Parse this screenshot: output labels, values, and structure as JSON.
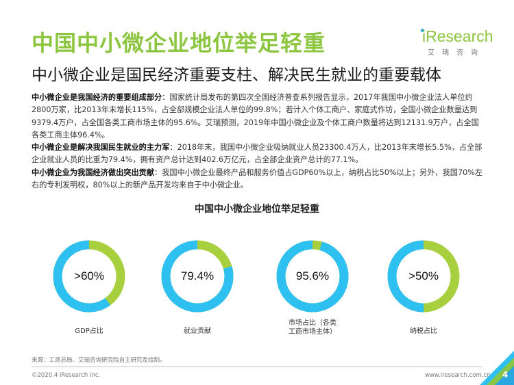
{
  "header": {
    "title": "中国中小微企业地位举足轻重",
    "subtitle": "中小微企业是国民经济重要支柱、解决民生就业的重要载体"
  },
  "logo": {
    "word": "iResearch",
    "cn": "艾瑞咨询"
  },
  "paragraphs": [
    {
      "bold": "中小微企业是我国经济的重要组成部分",
      "text": "：国家统计局发布的第四次全国经济普查系列报告显示，2017年我国中小微企业法人单位约2800万家，比2013年末增长115%，占全部规模企业法人单位的99.8%；若计入个体工商户、家庭式作坊，全国小微企业数量达到9379.4万户，占全国各类工商市场主体的95.6%。艾瑞预测，2019年中国小微企业及个体工商户数量将达到12131.9万户，占全国各类工商主体96.4%。"
    },
    {
      "bold": "中小微企业是解决我国民生就业的主力军",
      "text": "：2018年末，我国中小微企业吸纳就业人员23300.4万人，比2013年末增长5.5%，占全部企业就业人员的比重为79.4%，拥有资产总计达到402.6万亿元，占全部企业资产总计的77.1%。"
    },
    {
      "bold": "中小微企业为我国经济做出突出贡献",
      "text": "：我国中小微企业最终产品和服务价值占GDP60%以上，纳税占比50%以上；另外，我国70%左右的专利发明权，80%以上的新产品开发均来自于中小微企业。"
    }
  ],
  "chart_data": {
    "type": "pie",
    "title": "中国中小微企业地位举足轻重",
    "colors": {
      "share": "#2ec0f0",
      "rest": "#a7cf3e"
    },
    "items": [
      {
        "label": "GDP占比",
        "value_text": ">60%",
        "value": 60
      },
      {
        "label": "就业贡献",
        "value_text": "79.4%",
        "value": 79.4
      },
      {
        "label": "市场占比（各类工商市场主体）",
        "value_text": "95.6%",
        "value": 95.6
      },
      {
        "label": "纳税占比",
        "value_text": ">50%",
        "value": 50
      }
    ]
  },
  "footer": {
    "source": "来源：工商总局、艾瑞咨询研究院自主研究及绘制。",
    "copyright": "©2020.4 iResearch Inc.",
    "website": "www.iresearch.com.cn",
    "page": "4"
  }
}
